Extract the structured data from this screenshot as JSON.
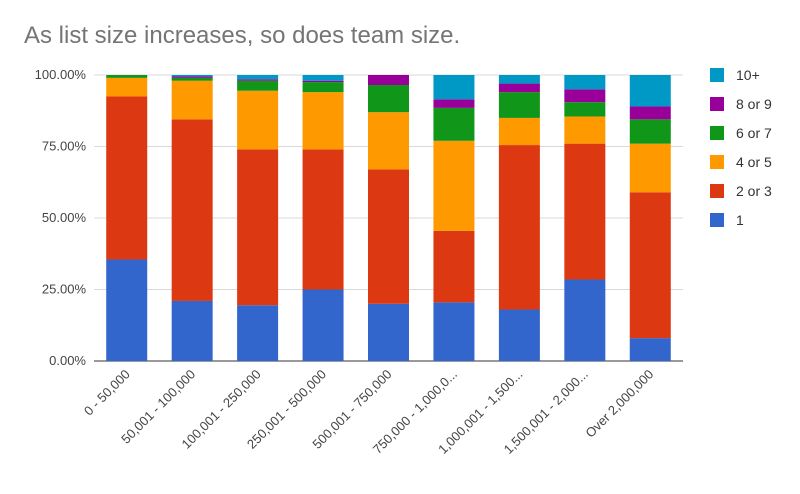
{
  "chart_data": {
    "type": "bar",
    "stacked": true,
    "title": "As list size increases, so does team size.",
    "xlabel": "",
    "ylabel": "",
    "ylim": [
      0,
      100
    ],
    "y_ticks": [
      "0.00%",
      "25.00%",
      "50.00%",
      "75.00%",
      "100.00%"
    ],
    "grid": true,
    "legend_position": "right",
    "categories": [
      "0 - 50,000",
      "50,001 - 100,000",
      "100,001 - 250,000",
      "250,001 - 500,000",
      "500,001 - 750,000",
      "750,000 - 1,000,0...",
      "1,000,001 - 1,500...",
      "1,500,001 - 2,000...",
      "Over 2,000,000"
    ],
    "series": [
      {
        "name": "1",
        "color": "#3366cc",
        "values": [
          35.5,
          21.0,
          19.5,
          25.0,
          20.0,
          20.5,
          18.0,
          28.5,
          8.0
        ]
      },
      {
        "name": "2 or 3",
        "color": "#dc3912",
        "values": [
          57.0,
          63.5,
          54.5,
          49.0,
          47.0,
          25.0,
          57.5,
          47.5,
          51.0
        ]
      },
      {
        "name": "4 or 5",
        "color": "#ff9900",
        "values": [
          6.5,
          13.5,
          20.5,
          20.0,
          20.0,
          31.5,
          9.5,
          9.5,
          17.0
        ]
      },
      {
        "name": "6 or 7",
        "color": "#109618",
        "values": [
          1.0,
          1.0,
          3.5,
          3.5,
          9.5,
          11.5,
          9.0,
          5.0,
          8.5
        ]
      },
      {
        "name": "8 or 9",
        "color": "#990099",
        "values": [
          0,
          0.5,
          0.5,
          0.5,
          3.5,
          3.0,
          3.0,
          4.5,
          4.5
        ]
      },
      {
        "name": "10+",
        "color": "#0099c6",
        "values": [
          0,
          0.5,
          1.5,
          2.0,
          0,
          8.5,
          3.0,
          5.0,
          11.0
        ]
      }
    ],
    "legend_order": [
      "10+",
      "8 or 9",
      "6 or 7",
      "4 or 5",
      "2 or 3",
      "1"
    ]
  }
}
